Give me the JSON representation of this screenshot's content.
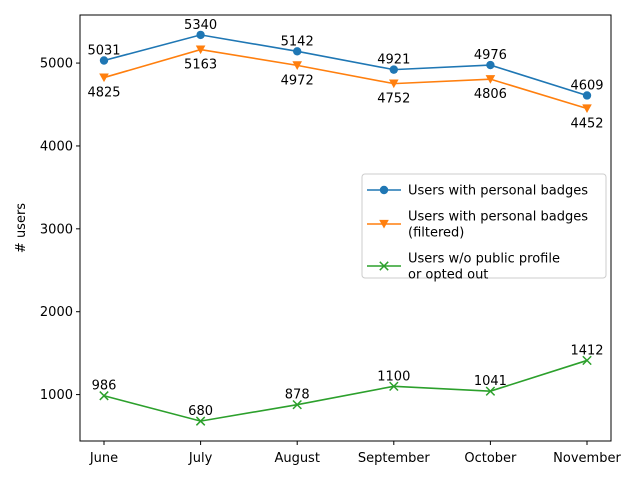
{
  "chart_data": {
    "type": "line",
    "title": "",
    "xlabel": "",
    "ylabel": "# users",
    "categories": [
      "June",
      "July",
      "August",
      "September",
      "October",
      "November"
    ],
    "ylim": [
      440,
      5580
    ],
    "yticks": [
      1000,
      2000,
      3000,
      4000,
      5000
    ],
    "grid": false,
    "legend_position": "center-right",
    "series": [
      {
        "name": "Users with personal badges",
        "legend_lines": [
          "Users with personal badges"
        ],
        "color": "#1f77b4",
        "marker": "circle",
        "label_position": "above",
        "values": [
          5031,
          5340,
          5142,
          4921,
          4976,
          4609
        ]
      },
      {
        "name": "Users with personal badges (filtered)",
        "legend_lines": [
          "Users with personal badges",
          "(filtered)"
        ],
        "color": "#ff7f0e",
        "marker": "triangle-down",
        "label_position": "below",
        "values": [
          4825,
          5163,
          4972,
          4752,
          4806,
          4452
        ]
      },
      {
        "name": "Users w/o public profile or opted out",
        "legend_lines": [
          "Users w/o public profile",
          "or opted out"
        ],
        "color": "#2ca02c",
        "marker": "x",
        "label_position": "above",
        "values": [
          986,
          680,
          878,
          1100,
          1041,
          1412
        ]
      }
    ]
  }
}
